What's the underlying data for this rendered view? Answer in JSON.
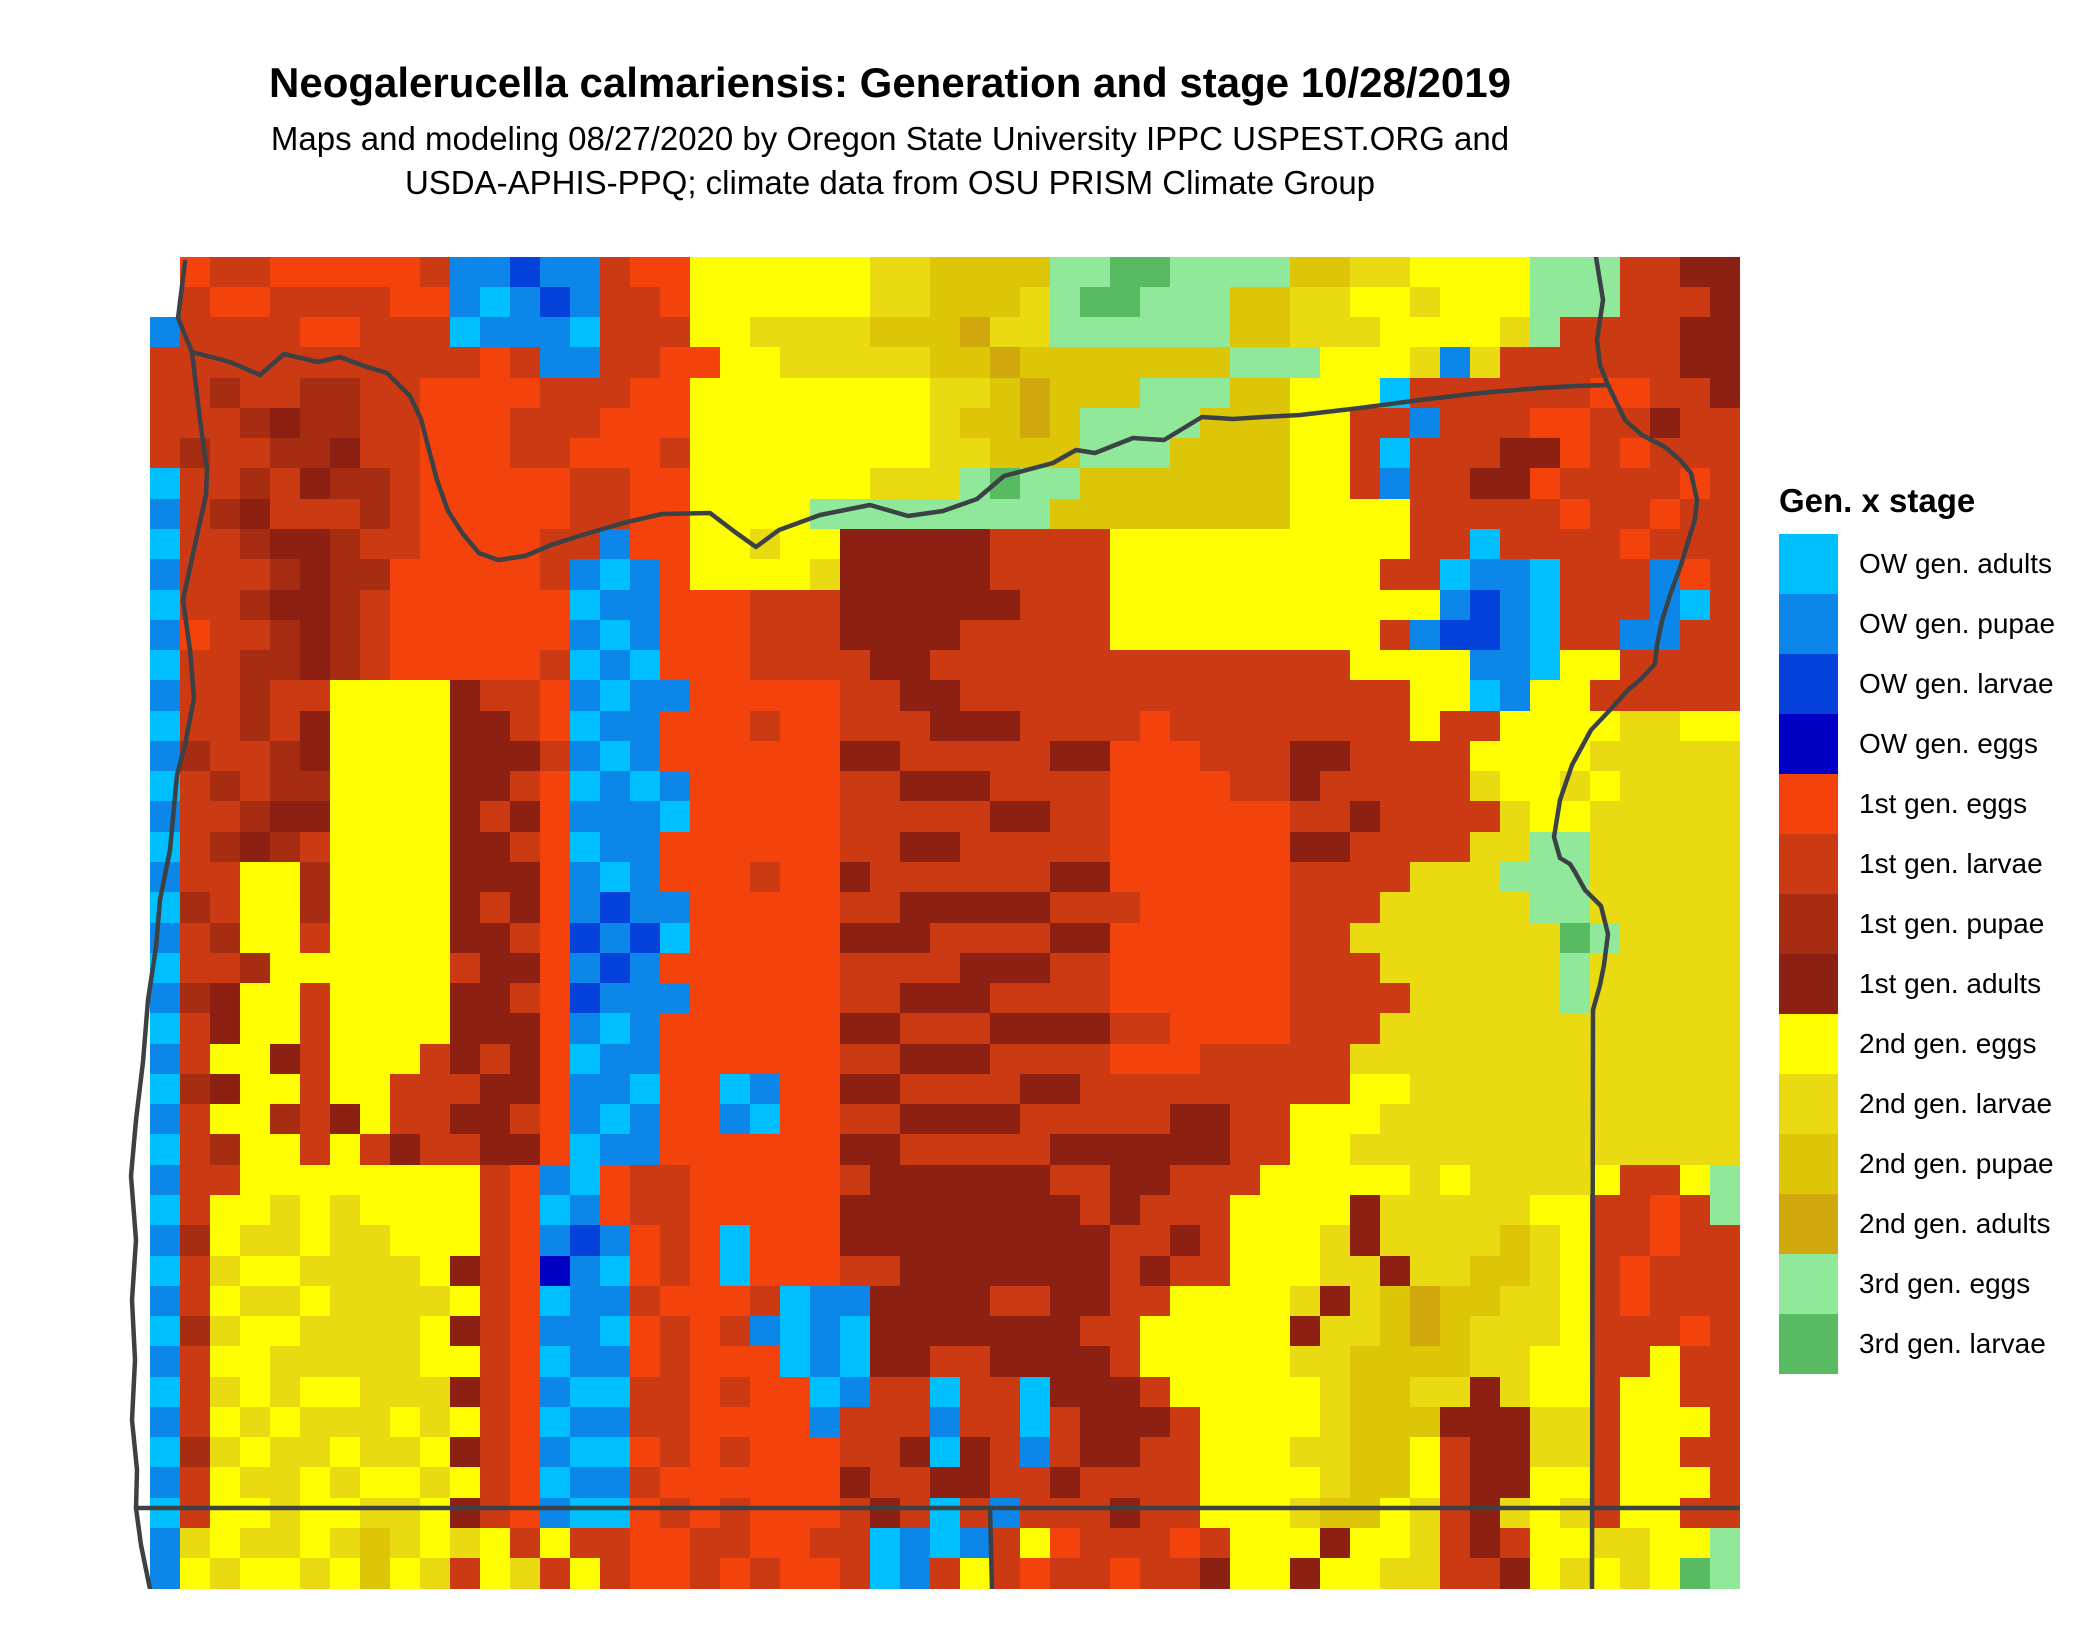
{
  "header": {
    "title": "Neogalerucella calmariensis: Generation and stage 10/28/2019",
    "subtitle_line1": "Maps and modeling 08/27/2020 by Oregon State University IPPC USPEST.ORG and",
    "subtitle_line2": "USDA-APHIS-PPQ; climate data from OSU PRISM Climate Group"
  },
  "legend": {
    "title": "Gen. x stage",
    "items": [
      {
        "label": "OW gen. adults",
        "color": "#00BFFF"
      },
      {
        "label": "OW gen. pupae",
        "color": "#0C86E8"
      },
      {
        "label": "OW gen. larvae",
        "color": "#0542DB"
      },
      {
        "label": "OW gen. eggs",
        "color": "#0000C4"
      },
      {
        "label": "1st gen. eggs",
        "color": "#F4420C"
      },
      {
        "label": "1st gen. larvae",
        "color": "#CB3A12"
      },
      {
        "label": "1st gen. pupae",
        "color": "#A72D12"
      },
      {
        "label": "1st gen. adults",
        "color": "#8C2012"
      },
      {
        "label": "2nd gen. eggs",
        "color": "#FFFF00"
      },
      {
        "label": "2nd gen. larvae",
        "color": "#E9DA11"
      },
      {
        "label": "2nd gen. pupae",
        "color": "#DCC607"
      },
      {
        "label": "2nd gen. adults",
        "color": "#D0A80E"
      },
      {
        "label": "3rd gen. eggs",
        "color": "#90E89A"
      },
      {
        "label": "3rd gen. larvae",
        "color": "#58BA61"
      }
    ]
  },
  "map_palette": {
    "a": "#00BFFF",
    "b": "#0C86E8",
    "c": "#0542DB",
    "d": "#0000C4",
    "e": "#F4420C",
    "f": "#CB3A12",
    "g": "#A72D12",
    "h": "#8C2012",
    "i": "#FFFF00",
    "j": "#E9DA11",
    "k": "#DCC607",
    "l": "#D0A80E",
    "m": "#90E89A",
    "n": "#58BA61",
    ".": "transparent"
  },
  "border_color": "#3B4144",
  "map_raster": {
    "cols": 54,
    "rows": [
      "..effeeeeefbbcbbfeeiiiiiijjkkkkmmnnmmmmkkjjiiiimmmffhh",
      "..feeffffeebabcbffeiiiiiijjkkkjmnnmmmkkjjiijiiimmmfffh",
      ".bffffeefffabbbafffiijjjjkkkljjmmmmmmkkjjjiiiijmffffhh",
      ".fffffffffffefbbffeeiijjjjjkklkkkkkkkmmmiiijbjffffffhhf",
      ".ffgffggffeeeefffeeiiiiiiiijjklkkkmmmkkiiiaffffffeeffhf",
      ".fffghggffeeefffeeeiiiiiiiijkklkmmmmkkkiiffbfffeeffhff",
      ".fgffgghffeeeffeeefiiiiiiiijjkkkmmmkkkkiifafffhhefefff",
      ".affgfhggfeeeeeffeeiiiiiijjjmnmmkkkkkkkiifbffhheffffef",
      ".bfghfffgfeeeeeffeeiiiimmmmmmmmkkkkkkkkiiiifffffeffeff",
      ".affghhgffeeeeffbeeiijiihhhhhffffiiiiiiiiiiffaffffefff",
      ".bfffghggeeeeefbabeiiiijhhhhhffffiiiiiiiiiffabbafffbef",
      ".affghhgfeeeeeeabbeeefffhhhhhhfffiiiiiiiiiiibcbafffbaf",
      ".beffghgfeeeeeebabeeefffhhhhfffffiiiiiiiiifbccbaffbbf",
      ".affgghgfeeeeefabaeeeffffhhffffffffffffffiiiibbaiifffff",
      ".bffgffiiiihffebabbeeeeeffhhfffffffffffffffiiabiiffffff",
      ".affgfhiiiihhfeabbeeefeefffhhhffffeffffffffiffiiiijjii",
      ".bgffghiiiihhhfbabeeeeeehhfffffhheeefffhhffffiiiijjjjj",
      ".afgfggiiiihhfeababeeeeeffhhhffffeeeeffhfffffjiijijjjj",
      ".bffghhiiiihfhebbbaeeeeefffffhhffeeeeeeffhffffjiijjjjj",
      ".afghgfiiiihhfeabbeeeeeeffhhfffffeeeeeehhffffjjmmjjjjj",
      ".bffiigiiiihhhebabeeefeehffffffhheeeeeeffffjjjmmmjjjjj",
      ".agfiigiiiihfhebcbbeeeeeffhhhhhfffeeeeefffjjjjjmmjjjjj",
      ".bfgiifiiiihhfecbcaeeeeehhhffffhheeeeeeffjjjjjjjnmjjjj",
      ".affgiiiiiifhhebcbeeeeeeffffhhhffeeeeeefffjjjjjjmjjjjj",
      ".bghiifiiiihhfecbbbeeeeeffhhhffffeeeeeeffffjjjjjmjjjjj",
      ".afhiifiiiihhhebabeeeeeehhfffhhhhffeeeefffjjjjjjjjjjjj",
      ".bfiihfiiifhfheabbeeeeeeffhhhffffeeefffffjjjjjjjjjjjjj",
      ".aghiifiifffhhebbaeeabeehhffffhhfffffffffiijjjjjjjjjjj",
      ".bfiigfhiffhhfebabeebaeeffhhhhfffffhhffiiijjjjjjjjjjjj",
      ".afgiififhffhheabbeeeeeehhfffffhhhhhhffiijjjjjjjjjjjjj",
      ".bffiiiiiiiifebaeffeeeeefhhhhhhffhhfffiiiiijijjjjiffim",
      ".afiijijiiiifeabeffeeeeehhhhhhhhfhfffiiiihjjjjjiiffefm",
      ".bgijjijjiiifebcbefeaeeehhhhhhhhhffhfiiijhjjjjkjiffeff",
      ".afjiijjjjihfedbaefeaeeeffhhhhhhhfhffiiijjhjjkkjifefff",
      ".bfijjijjjjifeabbfeeefabbhhhhffhhffiiiijhjklkkjjifefff",
      ".agjiijjjjihfebbaefefbabahhhhhhhffiiiiihjjklkjjjifffef",
      ".bfiijjjjjiifeabbefeeeabahhffhhhhfiiiiijjkkkkjjiiffiff",
      ".afjijiijjjhfebaaffefeeabffaffahhhfiiiiijkkjjhjiifiiff",
      ".bfijijjjijifeabbffeeeebfffbffafhhhfiiiijkkkhhhjjfiiif",
      ".agjijjijjihfebaaefefeeeffhahfbfhhffiiijjkkifhhjjfiiff",
      ".bfijjijiijifeabbfeeeeeehffhhffhffffiiiijkkifhhiifiiif",
      ".afiijiijjihfebaaefefeeefhfafbfffhffiiijkkijfhjijfiiff",
      ".bjijjijkjijififfeeffeeffababfiefffefiiihiijfhfiijjiim",
      ".bijiijikijfijfifeefefeefabfifeffeffhiihiijjffhijijinm"
    ]
  }
}
